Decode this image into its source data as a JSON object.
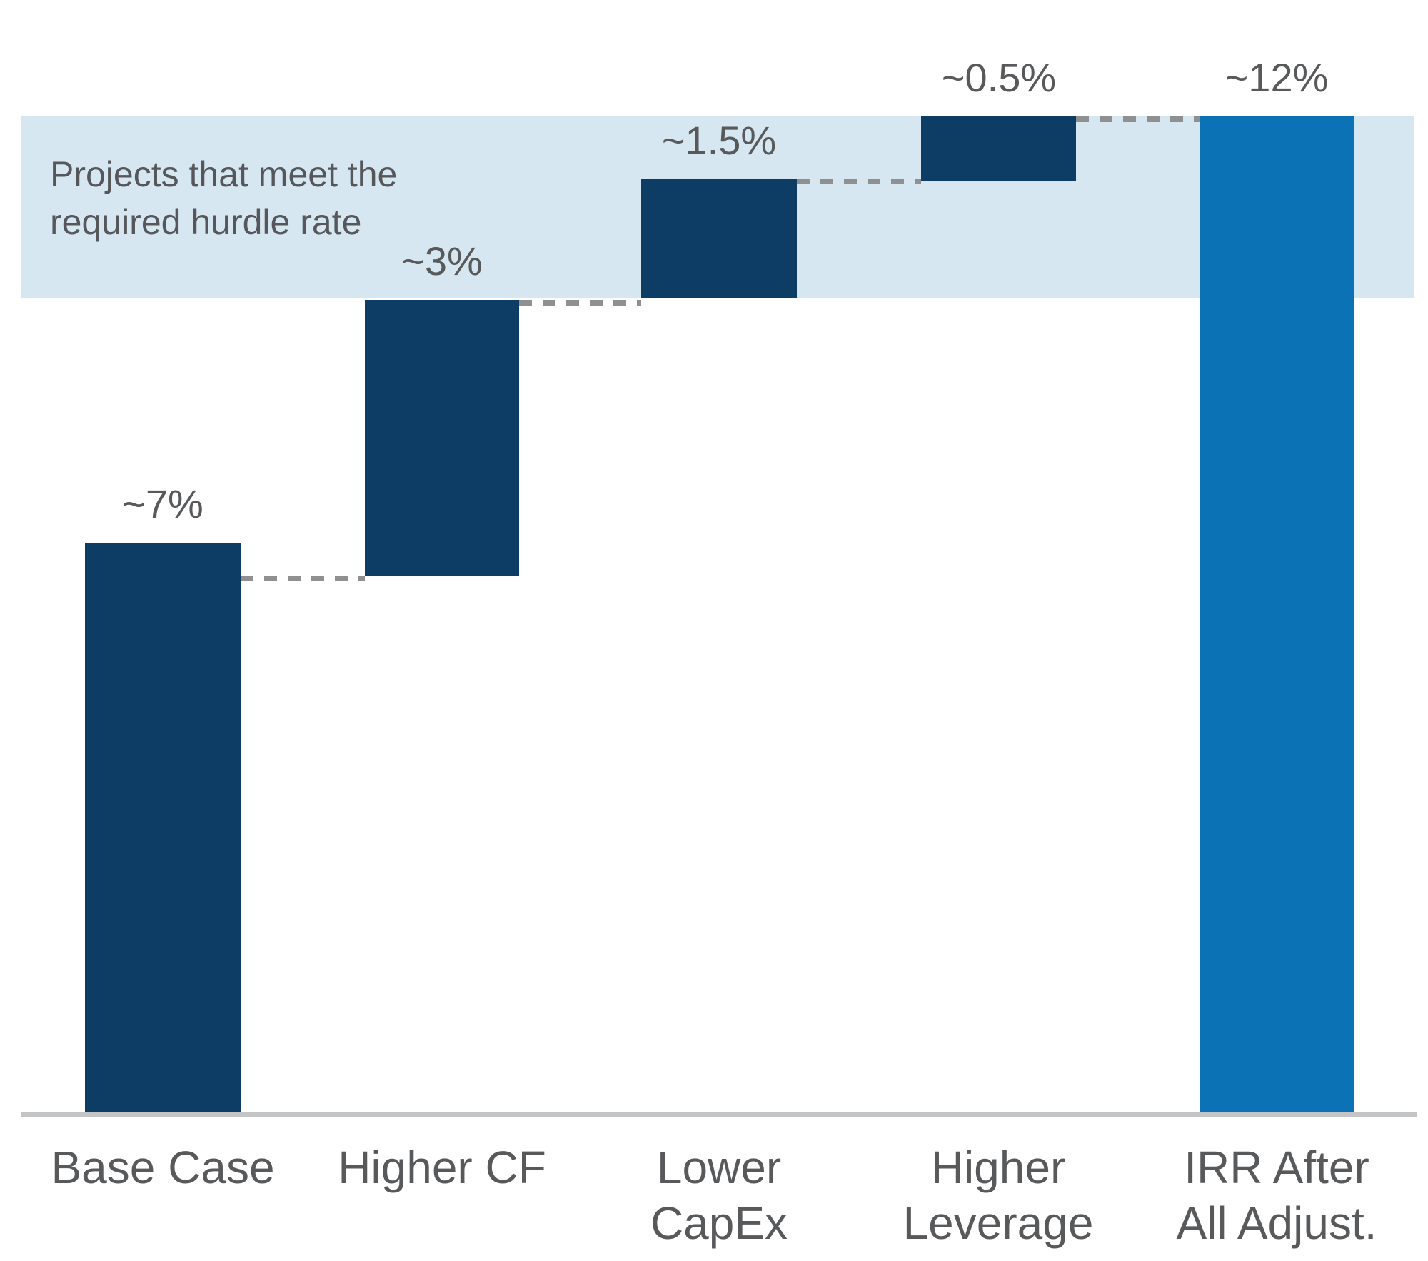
{
  "chart_data": {
    "type": "waterfall",
    "title": "",
    "unit": "%",
    "ylim": [
      0,
      12
    ],
    "grid": false,
    "legend": false,
    "axis": {
      "x_baseline_visible": true,
      "y_axis_visible": false,
      "tick_labels_visible": false
    },
    "categories": [
      "Base Case",
      "Higher CF",
      "Lower CapEx",
      "Higher Leverage",
      "IRR After All Adjust."
    ],
    "steps": [
      {
        "label": "Base Case",
        "axis_label": "Base Case",
        "value": 7,
        "value_label": "~7%",
        "start": 0,
        "end": 7,
        "role": "base",
        "color": "#0d3d64"
      },
      {
        "label": "Higher CF",
        "axis_label": "Higher CF",
        "value": 3,
        "value_label": "~3%",
        "start": 7,
        "end": 10,
        "role": "increase",
        "color": "#0d3d64"
      },
      {
        "label": "Lower CapEx",
        "axis_label": "Lower\nCapEx",
        "value": 1.5,
        "value_label": "~1.5%",
        "start": 10,
        "end": 11.5,
        "role": "increase",
        "color": "#0d3d64"
      },
      {
        "label": "Higher Leverage",
        "axis_label": "Higher\nLeverage",
        "value": 0.5,
        "value_label": "~0.5%",
        "start": 11.5,
        "end": 12,
        "role": "increase",
        "color": "#0d3d64"
      },
      {
        "label": "IRR After All Adjust.",
        "axis_label": "IRR After\nAll Adjust.",
        "value": 12,
        "value_label": "~12%",
        "start": 0,
        "end": 12,
        "role": "total",
        "color": "#0b72b6"
      }
    ],
    "connectors": [
      {
        "from": "Base Case",
        "to": "Higher CF",
        "level": 7
      },
      {
        "from": "Higher CF",
        "to": "Lower CapEx",
        "level": 10
      },
      {
        "from": "Lower CapEx",
        "to": "Higher Leverage",
        "level": 11.5
      },
      {
        "from": "Higher Leverage",
        "to": "IRR After All Adjust.",
        "level": 12
      }
    ],
    "annotation_band": {
      "text": "Projects that meet the\nrequired hurdle rate",
      "from": 10,
      "to": 12,
      "background": "#d7e7f2",
      "text_color": "#55575a"
    },
    "colors": {
      "bar_increase": "#0d3d64",
      "bar_total": "#0b72b6",
      "band_background": "#d7e7f2",
      "connector_dash": "#8e9092",
      "axis_line": "#c2c4c5",
      "label_text": "#58595b",
      "background": "#ffffff"
    }
  }
}
